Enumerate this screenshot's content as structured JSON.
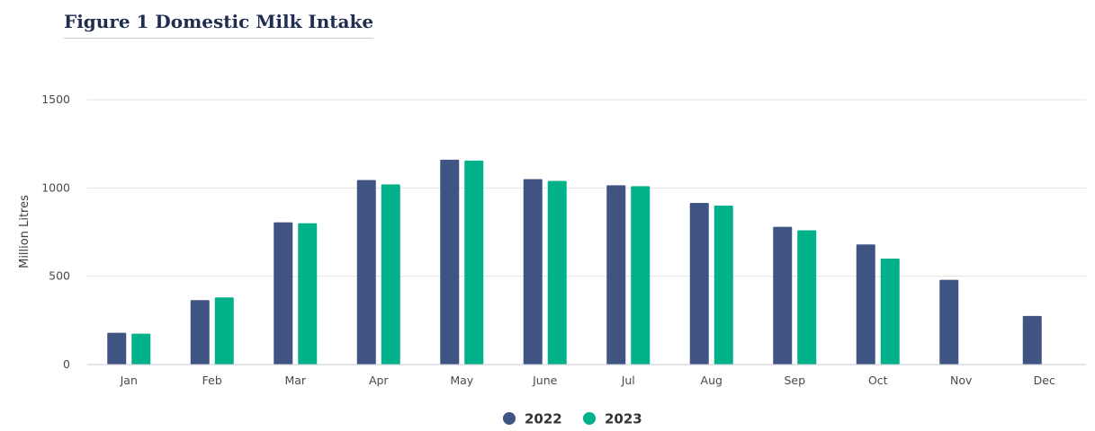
{
  "title": "Figure 1 Domestic Milk Intake",
  "colors": {
    "series_2022": "#3f5483",
    "series_2023": "#00b189",
    "grid": "#e3e3e3",
    "title": "#1f2d4f"
  },
  "chart_data": {
    "type": "bar",
    "title": "Figure 1 Domestic Milk Intake",
    "xlabel": "",
    "ylabel": "Million Litres",
    "ylim": [
      0,
      1500
    ],
    "yticks": [
      0,
      500,
      1000,
      1500
    ],
    "grid": true,
    "legend_position": "bottom-center",
    "categories": [
      "Jan",
      "Feb",
      "Mar",
      "Apr",
      "May",
      "June",
      "Jul",
      "Aug",
      "Sep",
      "Oct",
      "Nov",
      "Dec"
    ],
    "series": [
      {
        "name": "2022",
        "color": "#3f5483",
        "values": [
          180,
          365,
          805,
          1045,
          1160,
          1050,
          1015,
          915,
          780,
          680,
          480,
          275
        ]
      },
      {
        "name": "2023",
        "color": "#00b189",
        "values": [
          175,
          380,
          800,
          1020,
          1155,
          1040,
          1010,
          900,
          760,
          600,
          null,
          null
        ]
      }
    ]
  }
}
